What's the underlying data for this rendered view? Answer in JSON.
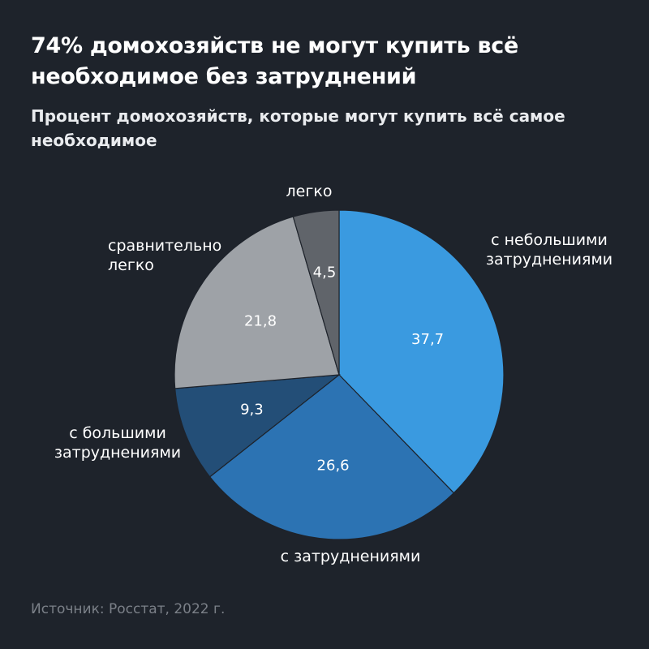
{
  "header": {
    "title": "74% домохозяйств не могут купить всё необходимое без затруднений",
    "subtitle": "Процент домохозяйств, которые могут купить всё самое необходимое"
  },
  "footer": {
    "source": "Источник: Росстат, 2022 г."
  },
  "chart_data": {
    "type": "pie",
    "title": "74% домохозяйств не могут купить всё необходимое без затруднений",
    "subtitle": "Процент домохозяйств, которые могут купить всё самое необходимое",
    "legend": "none",
    "slices": [
      {
        "label": "с небольшими затруднениями",
        "value": 37.7,
        "display": "37,7",
        "color": "#3a9ae0"
      },
      {
        "label": "с затруднениями",
        "value": 26.6,
        "display": "26,6",
        "color": "#2c73b3"
      },
      {
        "label": "с большими затруднениями",
        "value": 9.3,
        "display": "9,3",
        "color": "#234e77"
      },
      {
        "label": "сравнительно легко",
        "value": 21.8,
        "display": "21,8",
        "color": "#9ea2a7"
      },
      {
        "label": "легко",
        "value": 4.5,
        "display": "4,5",
        "color": "#60646a"
      }
    ]
  }
}
